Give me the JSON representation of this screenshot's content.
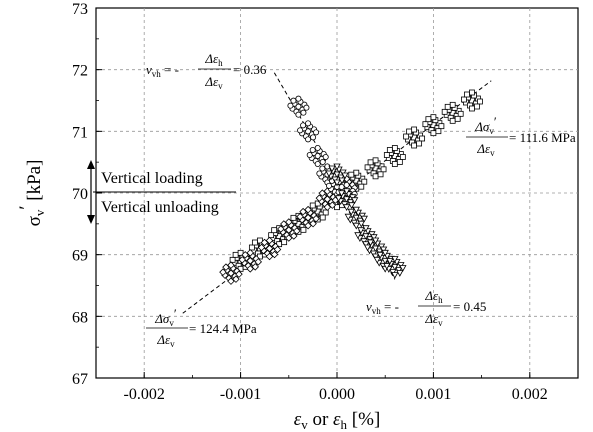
{
  "chart_data": {
    "type": "scatter",
    "xlabel_parts": {
      "sym1": "ε",
      "sub1": "v",
      "mid": " or ",
      "sym2": "ε",
      "sub2": "h",
      "unit": " [%]"
    },
    "ylabel_parts": {
      "sym": "σ",
      "sub": "v",
      "prime": "′",
      "unit": " [kPa]"
    },
    "xlim": [
      -0.0025,
      0.0025
    ],
    "ylim": [
      67,
      73
    ],
    "x_ticks": [
      -0.002,
      -0.001,
      0.0,
      0.001,
      0.002
    ],
    "x_tick_labels": [
      "-0.002",
      "-0.001",
      "0.000",
      "0.001",
      "0.002"
    ],
    "y_ticks": [
      67,
      68,
      69,
      70,
      71,
      72,
      73
    ],
    "y_tick_labels": [
      "67",
      "68",
      "69",
      "70",
      "71",
      "72",
      "73"
    ],
    "grid": true,
    "series": [
      {
        "marker": "square",
        "x": [
          -0.001,
          -0.0008,
          -0.0006,
          -0.0004,
          -0.0002,
          0.0,
          0.0002,
          0.0004,
          0.0006,
          0.0008,
          0.001,
          0.0012,
          0.0014
        ],
        "y": [
          68.9,
          69.1,
          69.3,
          69.5,
          69.7,
          69.9,
          70.2,
          70.4,
          70.6,
          70.9,
          71.1,
          71.3,
          71.5
        ]
      },
      {
        "marker": "diamond",
        "x": [
          -0.0011,
          -0.0009,
          -0.0007,
          -0.0005,
          -0.0003,
          -0.0001,
          0.0001
        ],
        "y": [
          68.7,
          68.9,
          69.1,
          69.4,
          69.6,
          69.9,
          70.1
        ]
      },
      {
        "marker": "circle",
        "x": [
          -0.0004,
          -0.0003,
          -0.0002,
          -0.0001,
          0.0,
          0.0001
        ],
        "y": [
          71.4,
          71.0,
          70.6,
          70.3,
          70.1,
          70.0
        ]
      },
      {
        "marker": "triangle-down",
        "x": [
          0.0,
          0.0001,
          0.0002,
          0.0003,
          0.0004,
          0.0005,
          0.0006
        ],
        "y": [
          70.3,
          69.9,
          69.6,
          69.3,
          69.1,
          68.9,
          68.8
        ]
      }
    ],
    "trend_lines": [
      {
        "from": [
          -0.0016,
          68.05
        ],
        "to": [
          0.0016,
          71.82
        ]
      },
      {
        "from": [
          -0.00065,
          71.95
        ],
        "to": [
          0.0006,
          68.6
        ]
      }
    ],
    "annotations": {
      "vvh_top": {
        "v": "v",
        "sub": "vh",
        "eq": " = -",
        "num": "Δε",
        "num_sub": "h",
        "den": "Δε",
        "den_sub": "v",
        "value": " = 0.36"
      },
      "slope_right": {
        "num": "Δσ",
        "num_sub": "v",
        "num_prime": "′",
        "den": "Δε",
        "den_sub": "v",
        "value": " = 111.6 MPa"
      },
      "slope_left": {
        "num": "Δσ",
        "num_sub": "v",
        "num_prime": "′",
        "den": "Δε",
        "den_sub": "v",
        "value": " = 124.4 MPa"
      },
      "vvh_bottom": {
        "v": "v",
        "sub": "vh",
        "eq": " = -",
        "num": "Δε",
        "num_sub": "h",
        "den": "Δε",
        "den_sub": "v",
        "value": " = 0.45"
      },
      "loading": "Vertical loading",
      "unloading": "Vertical unloading"
    }
  }
}
